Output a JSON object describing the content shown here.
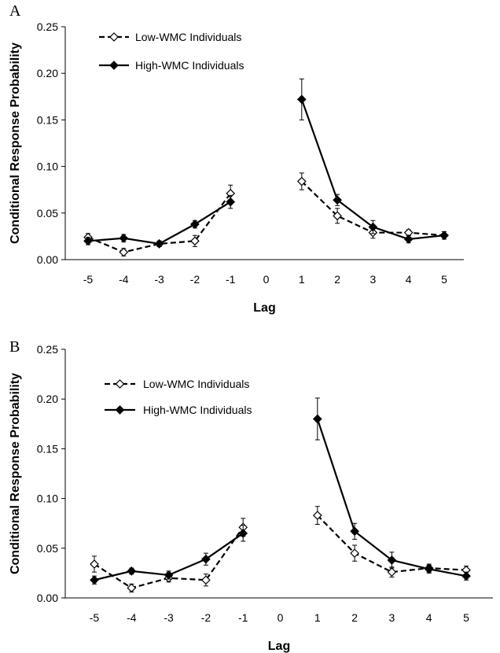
{
  "chart_data": [
    {
      "panel_label": "A",
      "type": "line",
      "xlabel": "Lag",
      "ylabel": "Conditional Response Probability",
      "ylim": [
        0,
        0.25
      ],
      "yticks": [
        "0.00",
        "0.05",
        "0.10",
        "0.15",
        "0.20",
        "0.25"
      ],
      "xticks": [
        "-5",
        "-4",
        "-3",
        "-2",
        "-1",
        "0",
        "1",
        "2",
        "3",
        "4",
        "5"
      ],
      "legend_position": "top-left",
      "series": [
        {
          "name": "Low-WMC Individuals",
          "marker": "open-diamond",
          "line": "dashed",
          "segments": [
            {
              "x": [
                -5,
                -4,
                -3,
                -2,
                -1
              ],
              "y": [
                0.024,
                0.008,
                0.017,
                0.02,
                0.071
              ],
              "err": [
                0.004,
                0.004,
                0.003,
                0.006,
                0.009
              ]
            },
            {
              "x": [
                1,
                2,
                3,
                4,
                5
              ],
              "y": [
                0.084,
                0.047,
                0.029,
                0.029,
                0.026
              ],
              "err": [
                0.009,
                0.008,
                0.006,
                0.003,
                0.004
              ]
            }
          ]
        },
        {
          "name": "High-WMC Individuals",
          "marker": "filled-diamond",
          "line": "solid",
          "segments": [
            {
              "x": [
                -5,
                -4,
                -3,
                -2,
                -1
              ],
              "y": [
                0.02,
                0.023,
                0.017,
                0.038,
                0.062
              ],
              "err": [
                0.004,
                0.004,
                0.003,
                0.004,
                0.007
              ]
            },
            {
              "x": [
                1,
                2,
                3,
                4,
                5
              ],
              "y": [
                0.172,
                0.064,
                0.035,
                0.022,
                0.026
              ],
              "err": [
                0.022,
                0.006,
                0.007,
                0.004,
                0.004
              ]
            }
          ]
        }
      ]
    },
    {
      "panel_label": "B",
      "type": "line",
      "xlabel": "Lag",
      "ylabel": "Conditional Response Probability",
      "ylim": [
        0,
        0.25
      ],
      "yticks": [
        "0.00",
        "0.05",
        "0.10",
        "0.15",
        "0.20",
        "0.25"
      ],
      "xticks": [
        "-5",
        "-4",
        "-3",
        "-2",
        "-1",
        "0",
        "1",
        "2",
        "3",
        "4",
        "5"
      ],
      "legend_position": "top-left",
      "series": [
        {
          "name": "Low-WMC Individuals",
          "marker": "open-diamond",
          "line": "dashed",
          "segments": [
            {
              "x": [
                -5,
                -4,
                -3,
                -2,
                -1
              ],
              "y": [
                0.034,
                0.01,
                0.02,
                0.018,
                0.071
              ],
              "err": [
                0.008,
                0.004,
                0.004,
                0.006,
                0.009
              ]
            },
            {
              "x": [
                1,
                2,
                3,
                4,
                5
              ],
              "y": [
                0.083,
                0.045,
                0.026,
                0.03,
                0.028
              ],
              "err": [
                0.009,
                0.008,
                0.005,
                0.004,
                0.004
              ]
            }
          ]
        },
        {
          "name": "High-WMC Individuals",
          "marker": "filled-diamond",
          "line": "solid",
          "segments": [
            {
              "x": [
                -5,
                -4,
                -3,
                -2,
                -1
              ],
              "y": [
                0.018,
                0.027,
                0.023,
                0.039,
                0.065
              ],
              "err": [
                0.004,
                0.003,
                0.004,
                0.006,
                0.008
              ]
            },
            {
              "x": [
                1,
                2,
                3,
                4,
                5
              ],
              "y": [
                0.18,
                0.067,
                0.038,
                0.029,
                0.022
              ],
              "err": [
                0.021,
                0.008,
                0.008,
                0.004,
                0.004
              ]
            }
          ]
        }
      ]
    }
  ]
}
